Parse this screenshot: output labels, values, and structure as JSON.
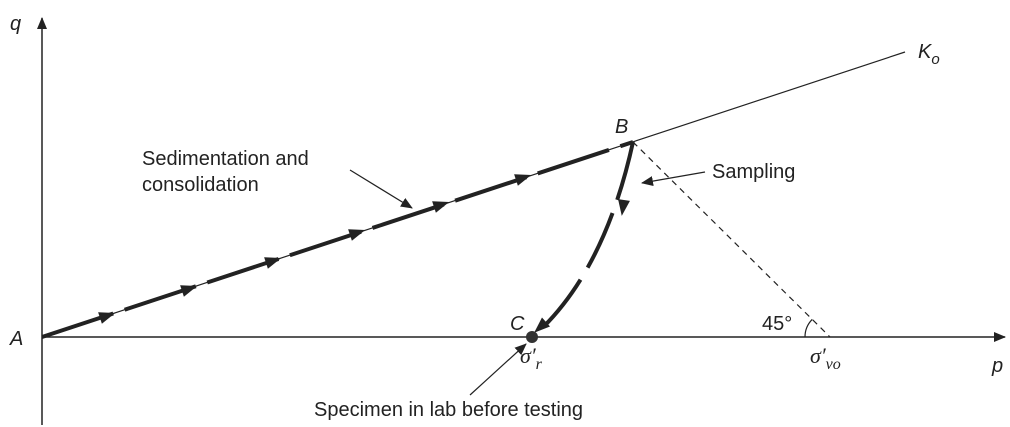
{
  "diagram": {
    "axes": {
      "y": "q",
      "x": "p"
    },
    "points": {
      "A": "A",
      "B": "B",
      "C": "C"
    },
    "line_label": {
      "main": "K",
      "sub": "o"
    },
    "sigma_r": {
      "main": "σ′",
      "sub": "r"
    },
    "sigma_vo": {
      "main": "σ′",
      "sub": "vo"
    },
    "angle": "45°",
    "annotations": {
      "sedimentation": [
        "Sedimentation and",
        "consolidation"
      ],
      "sampling": "Sampling",
      "specimen": "Specimen in lab before testing"
    }
  }
}
